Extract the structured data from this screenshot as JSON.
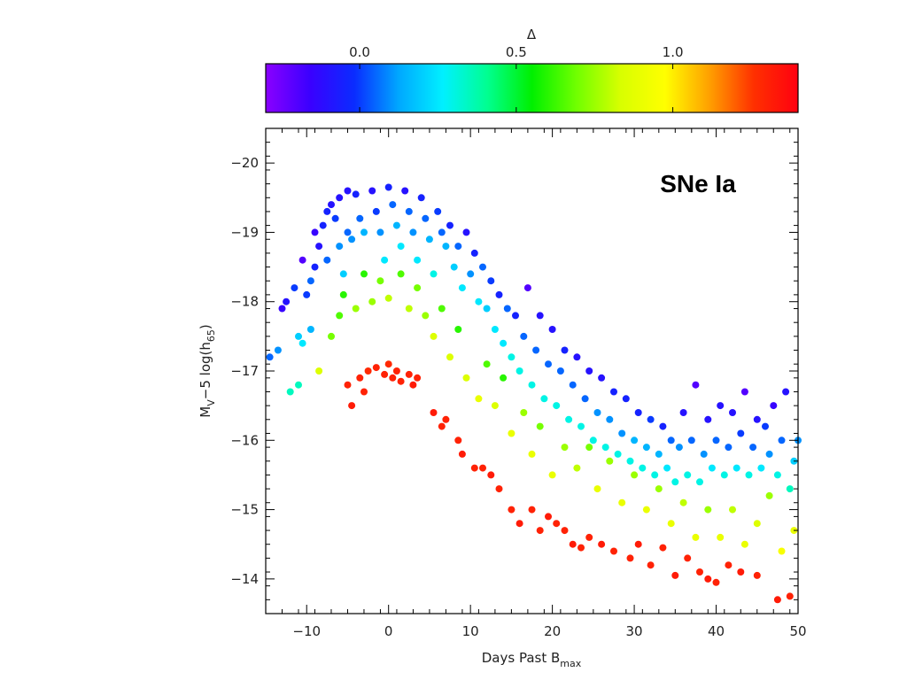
{
  "chart_data": {
    "type": "scatter",
    "title": "",
    "annotation": "SNe Ia",
    "xlabel": {
      "main": "Days Past B",
      "sub": "max"
    },
    "ylabel": {
      "p1": "M",
      "p1sub": "V",
      "p2": "−5 log(h",
      "p2sub": "65",
      "p3": ")"
    },
    "xlim": [
      -15,
      50
    ],
    "ylim": [
      -13.5,
      -20.5
    ],
    "xticks": [
      -10,
      0,
      10,
      20,
      30,
      40,
      50
    ],
    "yticks": [
      -20,
      -19,
      -18,
      -17,
      -16,
      -15,
      -14
    ],
    "xtick_labels": [
      "−10",
      "0",
      "10",
      "20",
      "30",
      "40",
      "50"
    ],
    "ytick_labels": [
      "−20",
      "−19",
      "−18",
      "−17",
      "−16",
      "−15",
      "−14"
    ],
    "colorbar": {
      "label": "Δ",
      "range": [
        -0.3,
        1.4
      ],
      "ticks": [
        0.0,
        0.5,
        1.0
      ],
      "tick_labels": [
        "0.0",
        "0.5",
        "1.0"
      ],
      "stops": [
        "#8a00ff",
        "#3a00ff",
        "#0a2cff",
        "#00a8ff",
        "#00f0ff",
        "#00ff90",
        "#00f000",
        "#70ff00",
        "#d8ff00",
        "#ffff00",
        "#ffa000",
        "#ff3000",
        "#ff0010"
      ]
    },
    "grid": false,
    "series": [
      {
        "values": [
          [
            -14.5,
            -17.2,
            0.05
          ],
          [
            -13.5,
            -17.3,
            0.1
          ],
          [
            -13.0,
            -17.9,
            -0.15
          ],
          [
            -12.5,
            -18.0,
            -0.1
          ],
          [
            -11.5,
            -18.2,
            0.0
          ],
          [
            -12.0,
            -16.7,
            0.35
          ],
          [
            -11.0,
            -16.8,
            0.35
          ],
          [
            -11.0,
            -17.5,
            0.2
          ],
          [
            -10.5,
            -17.4,
            0.25
          ],
          [
            -10.5,
            -18.6,
            -0.2
          ],
          [
            -10.0,
            -18.1,
            0.0
          ],
          [
            -9.5,
            -18.3,
            0.05
          ],
          [
            -9.5,
            -17.6,
            0.15
          ],
          [
            -9.0,
            -18.5,
            -0.05
          ],
          [
            -9.0,
            -19.0,
            -0.15
          ],
          [
            -8.5,
            -18.8,
            -0.1
          ],
          [
            -8.0,
            -19.1,
            -0.05
          ],
          [
            -7.5,
            -19.3,
            -0.05
          ],
          [
            -7.5,
            -18.6,
            0.05
          ],
          [
            -7.0,
            -19.4,
            -0.1
          ],
          [
            -6.5,
            -19.2,
            0.0
          ],
          [
            -6.0,
            -19.5,
            -0.1
          ],
          [
            -6.0,
            -18.8,
            0.1
          ],
          [
            -5.5,
            -18.4,
            0.2
          ],
          [
            -5.0,
            -19.6,
            -0.1
          ],
          [
            -5.0,
            -19.0,
            0.05
          ],
          [
            -4.5,
            -18.9,
            0.1
          ],
          [
            -4.0,
            -19.55,
            -0.05
          ],
          [
            -3.5,
            -19.2,
            0.05
          ],
          [
            -3.0,
            -19.0,
            0.15
          ],
          [
            -2.0,
            -19.6,
            -0.1
          ],
          [
            -1.5,
            -19.3,
            0.0
          ],
          [
            -1.0,
            -19.0,
            0.1
          ],
          [
            -0.5,
            -18.6,
            0.25
          ],
          [
            0.0,
            -19.65,
            -0.05
          ],
          [
            0.5,
            -19.4,
            0.05
          ],
          [
            1.0,
            -19.1,
            0.15
          ],
          [
            1.5,
            -18.8,
            0.25
          ],
          [
            2.0,
            -19.6,
            -0.1
          ],
          [
            2.5,
            -19.3,
            0.05
          ],
          [
            3.0,
            -19.0,
            0.1
          ],
          [
            3.5,
            -18.6,
            0.25
          ],
          [
            4.0,
            -19.5,
            -0.05
          ],
          [
            4.5,
            -19.2,
            0.05
          ],
          [
            5.0,
            -18.9,
            0.15
          ],
          [
            5.5,
            -18.4,
            0.3
          ],
          [
            6.0,
            -19.3,
            0.0
          ],
          [
            6.5,
            -19.0,
            0.05
          ],
          [
            7.0,
            -18.8,
            0.15
          ],
          [
            7.5,
            -19.1,
            -0.05
          ],
          [
            8.0,
            -18.5,
            0.2
          ],
          [
            8.5,
            -18.8,
            0.05
          ],
          [
            9.0,
            -18.2,
            0.25
          ],
          [
            9.5,
            -19.0,
            -0.1
          ],
          [
            10.0,
            -18.4,
            0.1
          ],
          [
            10.5,
            -18.7,
            -0.05
          ],
          [
            11.0,
            -18.0,
            0.25
          ],
          [
            11.5,
            -18.5,
            0.05
          ],
          [
            12.0,
            -17.9,
            0.2
          ],
          [
            12.5,
            -18.3,
            0.0
          ],
          [
            13.0,
            -17.6,
            0.25
          ],
          [
            13.5,
            -18.1,
            -0.05
          ],
          [
            14.0,
            -17.4,
            0.25
          ],
          [
            14.5,
            -17.9,
            0.05
          ],
          [
            15.0,
            -17.2,
            0.3
          ],
          [
            15.5,
            -17.8,
            -0.05
          ],
          [
            16.0,
            -17.0,
            0.3
          ],
          [
            16.5,
            -17.5,
            0.05
          ],
          [
            17.0,
            -18.2,
            -0.2
          ],
          [
            17.5,
            -16.8,
            0.3
          ],
          [
            18.0,
            -17.3,
            0.05
          ],
          [
            18.5,
            -17.8,
            -0.1
          ],
          [
            19.0,
            -16.6,
            0.3
          ],
          [
            19.5,
            -17.1,
            0.05
          ],
          [
            20.0,
            -17.6,
            -0.1
          ],
          [
            20.5,
            -16.5,
            0.3
          ],
          [
            21.0,
            -17.0,
            0.05
          ],
          [
            21.5,
            -17.3,
            -0.05
          ],
          [
            22.0,
            -16.3,
            0.3
          ],
          [
            22.5,
            -16.8,
            0.05
          ],
          [
            23.0,
            -17.2,
            -0.1
          ],
          [
            23.5,
            -16.2,
            0.3
          ],
          [
            24.0,
            -16.6,
            0.05
          ],
          [
            24.5,
            -17.0,
            -0.1
          ],
          [
            25.0,
            -16.0,
            0.3
          ],
          [
            25.5,
            -16.4,
            0.1
          ],
          [
            26.0,
            -16.9,
            -0.1
          ],
          [
            26.5,
            -15.9,
            0.3
          ],
          [
            27.0,
            -16.3,
            0.1
          ],
          [
            27.5,
            -16.7,
            -0.05
          ],
          [
            28.0,
            -15.8,
            0.3
          ],
          [
            28.5,
            -16.1,
            0.1
          ],
          [
            29.0,
            -16.6,
            -0.05
          ],
          [
            29.5,
            -15.7,
            0.3
          ],
          [
            30.0,
            -16.0,
            0.15
          ],
          [
            30.5,
            -16.4,
            -0.05
          ],
          [
            31.0,
            -15.6,
            0.3
          ],
          [
            31.5,
            -15.9,
            0.15
          ],
          [
            32.0,
            -16.3,
            0.0
          ],
          [
            32.5,
            -15.5,
            0.3
          ],
          [
            33.0,
            -15.8,
            0.15
          ],
          [
            33.5,
            -16.2,
            -0.05
          ],
          [
            34.0,
            -15.6,
            0.25
          ],
          [
            34.5,
            -16.0,
            0.05
          ],
          [
            35.0,
            -15.4,
            0.3
          ],
          [
            35.5,
            -15.9,
            0.1
          ],
          [
            36.0,
            -16.4,
            -0.1
          ],
          [
            36.5,
            -15.5,
            0.3
          ],
          [
            37.0,
            -16.0,
            0.05
          ],
          [
            37.5,
            -16.8,
            -0.2
          ],
          [
            38.0,
            -15.4,
            0.3
          ],
          [
            38.5,
            -15.8,
            0.1
          ],
          [
            39.0,
            -16.3,
            -0.1
          ],
          [
            39.5,
            -15.6,
            0.25
          ],
          [
            40.0,
            -16.0,
            0.05
          ],
          [
            40.5,
            -16.5,
            -0.1
          ],
          [
            41.0,
            -15.5,
            0.3
          ],
          [
            41.5,
            -15.9,
            0.05
          ],
          [
            42.0,
            -16.4,
            -0.1
          ],
          [
            42.5,
            -15.6,
            0.25
          ],
          [
            43.0,
            -16.1,
            0.0
          ],
          [
            43.5,
            -16.7,
            -0.2
          ],
          [
            44.0,
            -15.5,
            0.3
          ],
          [
            44.5,
            -15.9,
            0.05
          ],
          [
            45.0,
            -16.3,
            -0.1
          ],
          [
            45.5,
            -15.6,
            0.25
          ],
          [
            46.0,
            -16.2,
            0.0
          ],
          [
            46.5,
            -15.8,
            0.1
          ],
          [
            47.0,
            -16.5,
            -0.15
          ],
          [
            47.5,
            -15.5,
            0.3
          ],
          [
            48.0,
            -16.0,
            0.05
          ],
          [
            48.5,
            -16.7,
            -0.1
          ],
          [
            49.0,
            -15.3,
            0.35
          ],
          [
            49.5,
            -15.7,
            0.2
          ],
          [
            50.0,
            -16.0,
            0.1
          ]
        ]
      },
      {
        "values": [
          [
            -8.5,
            -17.0,
            0.85
          ],
          [
            -7.0,
            -17.5,
            0.7
          ],
          [
            -6.0,
            -17.8,
            0.65
          ],
          [
            -5.5,
            -18.1,
            0.6
          ],
          [
            -4.0,
            -17.9,
            0.75
          ],
          [
            -3.0,
            -18.4,
            0.6
          ],
          [
            -2.0,
            -18.0,
            0.75
          ],
          [
            -1.0,
            -18.3,
            0.7
          ],
          [
            0.0,
            -18.05,
            0.8
          ],
          [
            1.5,
            -18.4,
            0.65
          ],
          [
            2.5,
            -17.9,
            0.8
          ],
          [
            3.5,
            -18.2,
            0.7
          ],
          [
            4.5,
            -17.8,
            0.75
          ],
          [
            5.5,
            -17.5,
            0.85
          ],
          [
            6.5,
            -17.9,
            0.65
          ],
          [
            7.5,
            -17.2,
            0.85
          ],
          [
            8.5,
            -17.6,
            0.6
          ],
          [
            9.5,
            -16.9,
            0.85
          ],
          [
            11.0,
            -16.6,
            0.9
          ],
          [
            12.0,
            -17.1,
            0.65
          ],
          [
            13.0,
            -16.5,
            0.85
          ],
          [
            14.0,
            -16.9,
            0.6
          ],
          [
            15.0,
            -16.1,
            0.9
          ],
          [
            16.5,
            -16.4,
            0.75
          ],
          [
            17.5,
            -15.8,
            0.9
          ],
          [
            18.5,
            -16.2,
            0.7
          ],
          [
            20.0,
            -15.5,
            0.9
          ],
          [
            21.5,
            -15.9,
            0.75
          ],
          [
            23.0,
            -15.6,
            0.8
          ],
          [
            24.5,
            -15.9,
            0.7
          ],
          [
            25.5,
            -15.3,
            0.9
          ],
          [
            27.0,
            -15.7,
            0.75
          ],
          [
            28.5,
            -15.1,
            0.9
          ],
          [
            30.0,
            -15.5,
            0.75
          ],
          [
            31.5,
            -15.0,
            0.9
          ],
          [
            33.0,
            -15.3,
            0.75
          ],
          [
            34.5,
            -14.8,
            0.9
          ],
          [
            36.0,
            -15.1,
            0.8
          ],
          [
            37.5,
            -14.6,
            0.9
          ],
          [
            39.0,
            -15.0,
            0.75
          ],
          [
            40.5,
            -14.6,
            0.9
          ],
          [
            42.0,
            -15.0,
            0.8
          ],
          [
            43.5,
            -14.5,
            0.9
          ],
          [
            45.0,
            -14.8,
            0.85
          ],
          [
            46.5,
            -15.2,
            0.75
          ],
          [
            48.0,
            -14.4,
            0.95
          ],
          [
            49.5,
            -14.7,
            0.9
          ]
        ]
      },
      {
        "values": [
          [
            -5.0,
            -16.8,
            1.3
          ],
          [
            -4.5,
            -16.5,
            1.32
          ],
          [
            -3.5,
            -16.9,
            1.3
          ],
          [
            -3.0,
            -16.7,
            1.3
          ],
          [
            -2.5,
            -17.0,
            1.28
          ],
          [
            -1.5,
            -17.05,
            1.3
          ],
          [
            -0.5,
            -16.95,
            1.3
          ],
          [
            0.0,
            -17.1,
            1.28
          ],
          [
            0.5,
            -16.9,
            1.3
          ],
          [
            1.0,
            -17.0,
            1.3
          ],
          [
            1.5,
            -16.85,
            1.3
          ],
          [
            2.5,
            -16.95,
            1.3
          ],
          [
            3.0,
            -16.8,
            1.32
          ],
          [
            3.5,
            -16.9,
            1.3
          ],
          [
            5.5,
            -16.4,
            1.32
          ],
          [
            6.5,
            -16.2,
            1.3
          ],
          [
            7.0,
            -16.3,
            1.3
          ],
          [
            8.5,
            -16.0,
            1.3
          ],
          [
            9.0,
            -15.8,
            1.32
          ],
          [
            10.5,
            -15.6,
            1.3
          ],
          [
            11.5,
            -15.6,
            1.3
          ],
          [
            12.5,
            -15.5,
            1.32
          ],
          [
            13.5,
            -15.3,
            1.3
          ],
          [
            15.0,
            -15.0,
            1.3
          ],
          [
            16.0,
            -14.8,
            1.32
          ],
          [
            17.5,
            -15.0,
            1.3
          ],
          [
            18.5,
            -14.7,
            1.3
          ],
          [
            19.5,
            -14.9,
            1.32
          ],
          [
            20.5,
            -14.8,
            1.3
          ],
          [
            21.5,
            -14.7,
            1.3
          ],
          [
            22.5,
            -14.5,
            1.32
          ],
          [
            23.5,
            -14.45,
            1.3
          ],
          [
            24.5,
            -14.6,
            1.3
          ],
          [
            26.0,
            -14.5,
            1.32
          ],
          [
            27.5,
            -14.4,
            1.3
          ],
          [
            29.5,
            -14.3,
            1.3
          ],
          [
            30.5,
            -14.5,
            1.32
          ],
          [
            32.0,
            -14.2,
            1.3
          ],
          [
            33.5,
            -14.45,
            1.3
          ],
          [
            35.0,
            -14.05,
            1.32
          ],
          [
            36.5,
            -14.3,
            1.3
          ],
          [
            38.0,
            -14.1,
            1.3
          ],
          [
            39.0,
            -14.0,
            1.32
          ],
          [
            40.0,
            -13.95,
            1.3
          ],
          [
            41.5,
            -14.2,
            1.3
          ],
          [
            43.0,
            -14.1,
            1.32
          ],
          [
            45.0,
            -14.05,
            1.3
          ],
          [
            47.5,
            -13.7,
            1.32
          ],
          [
            49.0,
            -13.75,
            1.3
          ]
        ]
      }
    ]
  }
}
